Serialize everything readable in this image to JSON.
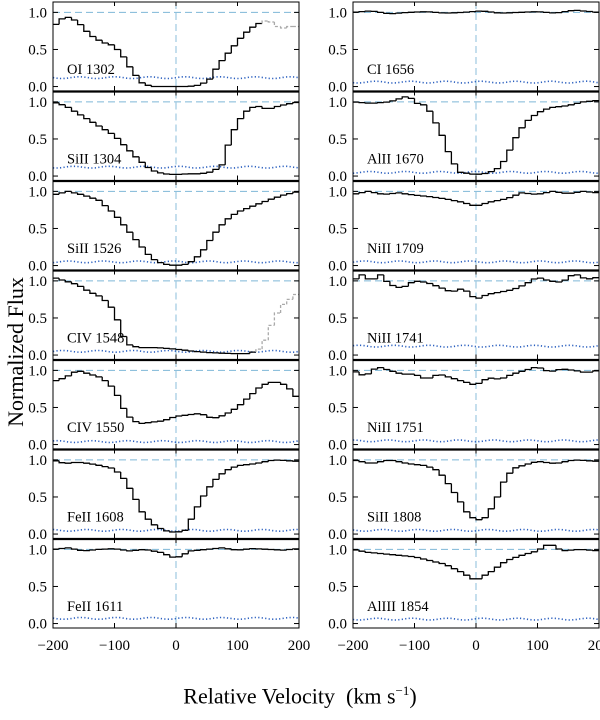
{
  "figure": {
    "xlabel_text": "Relative Velocity",
    "xlabel_units": "(km s",
    "xlabel_units_sup": "−1",
    "xlabel_units_end": ")",
    "ylabel": "Normalized Flux"
  },
  "chart_data": {
    "type": "line",
    "style": "step",
    "xlim": [
      -200,
      200
    ],
    "ylim": [
      -0.06,
      1.14
    ],
    "x_ticks": [
      -200,
      -100,
      0,
      100,
      200
    ],
    "y_ticks": [
      0.0,
      0.5,
      1.0
    ],
    "x_tick_labels": [
      "−200",
      "−100",
      "0",
      "100",
      "200"
    ],
    "y_tick_labels": [
      "0.0",
      "0.5",
      "1.0"
    ],
    "colors": {
      "spectrum": "#000000",
      "continuum": "#7fb8d8",
      "error": "#2a5fbf",
      "blend": "#aaaaaa"
    },
    "panels": [
      {
        "label": "OI 1302",
        "col": 0,
        "row": 0,
        "blend_from": 135,
        "nodes": [
          [
            -200,
            0.8
          ],
          [
            -180,
            0.95
          ],
          [
            -160,
            0.88
          ],
          [
            -140,
            0.7
          ],
          [
            -120,
            0.6
          ],
          [
            -100,
            0.55
          ],
          [
            -85,
            0.4
          ],
          [
            -70,
            0.2
          ],
          [
            -55,
            0.05
          ],
          [
            -40,
            0.0
          ],
          [
            -20,
            0.0
          ],
          [
            0,
            0.0
          ],
          [
            20,
            0.0
          ],
          [
            40,
            0.02
          ],
          [
            55,
            0.1
          ],
          [
            70,
            0.3
          ],
          [
            90,
            0.5
          ],
          [
            110,
            0.7
          ],
          [
            125,
            0.8
          ],
          [
            135,
            0.85
          ],
          [
            150,
            0.9
          ],
          [
            170,
            0.78
          ],
          [
            190,
            0.82
          ],
          [
            200,
            0.8
          ]
        ],
        "err": 0.12
      },
      {
        "label": "SiII 1304",
        "col": 0,
        "row": 1,
        "nodes": [
          [
            -200,
            1.0
          ],
          [
            -180,
            0.95
          ],
          [
            -160,
            0.85
          ],
          [
            -140,
            0.75
          ],
          [
            -120,
            0.65
          ],
          [
            -100,
            0.55
          ],
          [
            -80,
            0.38
          ],
          [
            -60,
            0.22
          ],
          [
            -40,
            0.08
          ],
          [
            -20,
            0.03
          ],
          [
            0,
            0.02
          ],
          [
            20,
            0.03
          ],
          [
            40,
            0.03
          ],
          [
            60,
            0.06
          ],
          [
            75,
            0.15
          ],
          [
            90,
            0.55
          ],
          [
            110,
            0.85
          ],
          [
            130,
            0.95
          ],
          [
            150,
            0.9
          ],
          [
            170,
            0.95
          ],
          [
            200,
            1.0
          ]
        ],
        "err": 0.12
      },
      {
        "label": "SiII 1526",
        "col": 0,
        "row": 2,
        "nodes": [
          [
            -200,
            0.95
          ],
          [
            -175,
            1.0
          ],
          [
            -150,
            0.95
          ],
          [
            -125,
            0.88
          ],
          [
            -100,
            0.7
          ],
          [
            -80,
            0.5
          ],
          [
            -60,
            0.3
          ],
          [
            -40,
            0.1
          ],
          [
            -20,
            0.02
          ],
          [
            0,
            0.0
          ],
          [
            20,
            0.02
          ],
          [
            40,
            0.15
          ],
          [
            60,
            0.4
          ],
          [
            80,
            0.6
          ],
          [
            100,
            0.72
          ],
          [
            125,
            0.8
          ],
          [
            150,
            0.88
          ],
          [
            175,
            0.95
          ],
          [
            200,
            1.0
          ]
        ],
        "err": 0.05
      },
      {
        "label": "CIV 1548",
        "col": 0,
        "row": 3,
        "blend_from": 130,
        "nodes": [
          [
            -200,
            1.05
          ],
          [
            -180,
            1.0
          ],
          [
            -160,
            0.95
          ],
          [
            -140,
            0.85
          ],
          [
            -120,
            0.78
          ],
          [
            -100,
            0.6
          ],
          [
            -90,
            0.35
          ],
          [
            -80,
            0.15
          ],
          [
            -60,
            0.1
          ],
          [
            -30,
            0.1
          ],
          [
            0,
            0.08
          ],
          [
            30,
            0.05
          ],
          [
            60,
            0.03
          ],
          [
            90,
            0.02
          ],
          [
            120,
            0.02
          ],
          [
            140,
            0.1
          ],
          [
            155,
            0.4
          ],
          [
            170,
            0.65
          ],
          [
            185,
            0.75
          ],
          [
            200,
            0.85
          ]
        ],
        "err": 0.05
      },
      {
        "label": "CIV 1550",
        "col": 0,
        "row": 4,
        "nodes": [
          [
            -200,
            0.85
          ],
          [
            -180,
            0.9
          ],
          [
            -160,
            1.0
          ],
          [
            -140,
            0.95
          ],
          [
            -120,
            0.9
          ],
          [
            -100,
            0.75
          ],
          [
            -80,
            0.4
          ],
          [
            -60,
            0.28
          ],
          [
            -40,
            0.3
          ],
          [
            -20,
            0.32
          ],
          [
            0,
            0.38
          ],
          [
            20,
            0.4
          ],
          [
            40,
            0.42
          ],
          [
            60,
            0.35
          ],
          [
            80,
            0.4
          ],
          [
            100,
            0.5
          ],
          [
            120,
            0.65
          ],
          [
            140,
            0.8
          ],
          [
            160,
            0.85
          ],
          [
            180,
            0.8
          ],
          [
            200,
            0.6
          ]
        ],
        "err": 0.04
      },
      {
        "label": "FeII 1608",
        "col": 0,
        "row": 5,
        "nodes": [
          [
            -200,
            1.0
          ],
          [
            -180,
            0.95
          ],
          [
            -160,
            0.97
          ],
          [
            -140,
            0.95
          ],
          [
            -120,
            0.92
          ],
          [
            -100,
            0.88
          ],
          [
            -85,
            0.75
          ],
          [
            -70,
            0.55
          ],
          [
            -55,
            0.3
          ],
          [
            -40,
            0.15
          ],
          [
            -20,
            0.05
          ],
          [
            0,
            0.02
          ],
          [
            15,
            0.05
          ],
          [
            25,
            0.2
          ],
          [
            40,
            0.45
          ],
          [
            60,
            0.7
          ],
          [
            80,
            0.85
          ],
          [
            100,
            0.92
          ],
          [
            130,
            0.95
          ],
          [
            160,
            1.0
          ],
          [
            200,
            0.98
          ]
        ],
        "err": 0.05
      },
      {
        "label": "FeII 1611",
        "col": 0,
        "row": 6,
        "nodes": [
          [
            -200,
            1.0
          ],
          [
            -175,
            1.02
          ],
          [
            -150,
            0.98
          ],
          [
            -125,
            1.0
          ],
          [
            -100,
            1.01
          ],
          [
            -75,
            0.98
          ],
          [
            -50,
            1.0
          ],
          [
            -25,
            0.96
          ],
          [
            0,
            0.88
          ],
          [
            25,
            0.98
          ],
          [
            50,
            1.0
          ],
          [
            75,
            1.02
          ],
          [
            100,
            0.99
          ],
          [
            125,
            1.01
          ],
          [
            150,
            1.0
          ],
          [
            175,
            0.99
          ],
          [
            200,
            1.01
          ]
        ],
        "err": 0.07
      },
      {
        "label": "CI 1656",
        "col": 1,
        "row": 0,
        "nodes": [
          [
            -200,
            1.0
          ],
          [
            -170,
            1.02
          ],
          [
            -140,
            0.98
          ],
          [
            -110,
            1.0
          ],
          [
            -80,
            1.01
          ],
          [
            -50,
            0.99
          ],
          [
            -20,
            1.0
          ],
          [
            10,
            1.02
          ],
          [
            40,
            0.99
          ],
          [
            70,
            1.0
          ],
          [
            100,
            1.01
          ],
          [
            130,
            0.99
          ],
          [
            160,
            1.03
          ],
          [
            200,
            1.0
          ]
        ],
        "err": 0.06
      },
      {
        "label": "AlII 1670",
        "col": 1,
        "row": 1,
        "nodes": [
          [
            -200,
            1.0
          ],
          [
            -170,
            0.98
          ],
          [
            -140,
            1.0
          ],
          [
            -110,
            1.08
          ],
          [
            -95,
            0.98
          ],
          [
            -80,
            0.95
          ],
          [
            -70,
            0.8
          ],
          [
            -55,
            0.55
          ],
          [
            -40,
            0.22
          ],
          [
            -25,
            0.05
          ],
          [
            0,
            0.02
          ],
          [
            20,
            0.04
          ],
          [
            40,
            0.12
          ],
          [
            55,
            0.35
          ],
          [
            70,
            0.6
          ],
          [
            85,
            0.75
          ],
          [
            100,
            0.85
          ],
          [
            120,
            0.92
          ],
          [
            150,
            0.95
          ],
          [
            175,
            1.0
          ],
          [
            200,
            1.02
          ]
        ],
        "err": 0.05
      },
      {
        "label": "NiII 1709",
        "col": 1,
        "row": 2,
        "nodes": [
          [
            -200,
            0.96
          ],
          [
            -175,
            1.0
          ],
          [
            -150,
            0.96
          ],
          [
            -125,
            0.98
          ],
          [
            -100,
            0.95
          ],
          [
            -75,
            0.93
          ],
          [
            -50,
            0.9
          ],
          [
            -25,
            0.86
          ],
          [
            0,
            0.8
          ],
          [
            25,
            0.86
          ],
          [
            50,
            0.9
          ],
          [
            75,
            0.98
          ],
          [
            100,
            0.96
          ],
          [
            125,
            1.0
          ],
          [
            150,
            0.97
          ],
          [
            175,
            1.0
          ],
          [
            200,
            0.98
          ]
        ],
        "err": 0.05
      },
      {
        "label": "NiII 1741",
        "col": 1,
        "row": 3,
        "nodes": [
          [
            -200,
            1.0
          ],
          [
            -185,
            1.08
          ],
          [
            -170,
            1.0
          ],
          [
            -155,
            1.08
          ],
          [
            -140,
            0.95
          ],
          [
            -120,
            0.9
          ],
          [
            -100,
            1.0
          ],
          [
            -80,
            0.98
          ],
          [
            -60,
            0.92
          ],
          [
            -40,
            0.85
          ],
          [
            -20,
            0.9
          ],
          [
            0,
            0.75
          ],
          [
            20,
            0.82
          ],
          [
            40,
            0.85
          ],
          [
            60,
            0.88
          ],
          [
            80,
            0.95
          ],
          [
            100,
            1.05
          ],
          [
            120,
            1.0
          ],
          [
            140,
            0.98
          ],
          [
            160,
            1.1
          ],
          [
            180,
            1.02
          ],
          [
            200,
            1.05
          ]
        ],
        "err": 0.12
      },
      {
        "label": "NiII 1751",
        "col": 1,
        "row": 4,
        "nodes": [
          [
            -200,
            1.0
          ],
          [
            -180,
            0.92
          ],
          [
            -160,
            1.05
          ],
          [
            -140,
            1.0
          ],
          [
            -120,
            0.95
          ],
          [
            -100,
            0.95
          ],
          [
            -80,
            0.88
          ],
          [
            -60,
            0.95
          ],
          [
            -40,
            0.9
          ],
          [
            -20,
            0.85
          ],
          [
            0,
            0.8
          ],
          [
            20,
            0.9
          ],
          [
            40,
            0.88
          ],
          [
            60,
            0.95
          ],
          [
            80,
            1.0
          ],
          [
            100,
            1.05
          ],
          [
            120,
            0.98
          ],
          [
            140,
            1.02
          ],
          [
            160,
            1.0
          ],
          [
            180,
            0.97
          ],
          [
            200,
            1.0
          ]
        ],
        "err": 0.05
      },
      {
        "label": "SiII 1808",
        "col": 1,
        "row": 5,
        "nodes": [
          [
            -200,
            1.0
          ],
          [
            -170,
            0.95
          ],
          [
            -140,
            1.0
          ],
          [
            -110,
            0.95
          ],
          [
            -80,
            0.92
          ],
          [
            -60,
            0.85
          ],
          [
            -45,
            0.68
          ],
          [
            -30,
            0.5
          ],
          [
            -15,
            0.3
          ],
          [
            0,
            0.18
          ],
          [
            15,
            0.22
          ],
          [
            30,
            0.4
          ],
          [
            45,
            0.7
          ],
          [
            60,
            0.88
          ],
          [
            75,
            0.92
          ],
          [
            100,
            0.98
          ],
          [
            130,
            0.95
          ],
          [
            160,
            1.0
          ],
          [
            200,
            0.98
          ]
        ],
        "err": 0.05
      },
      {
        "label": "AlIII 1854",
        "col": 1,
        "row": 6,
        "nodes": [
          [
            -200,
            1.0
          ],
          [
            -175,
            0.96
          ],
          [
            -150,
            0.94
          ],
          [
            -125,
            0.92
          ],
          [
            -100,
            0.9
          ],
          [
            -75,
            0.85
          ],
          [
            -50,
            0.8
          ],
          [
            -25,
            0.7
          ],
          [
            0,
            0.58
          ],
          [
            25,
            0.7
          ],
          [
            50,
            0.85
          ],
          [
            75,
            0.92
          ],
          [
            100,
            0.98
          ],
          [
            120,
            1.08
          ],
          [
            140,
            0.98
          ],
          [
            170,
            1.0
          ],
          [
            200,
            0.98
          ]
        ],
        "err": 0.06
      }
    ]
  }
}
